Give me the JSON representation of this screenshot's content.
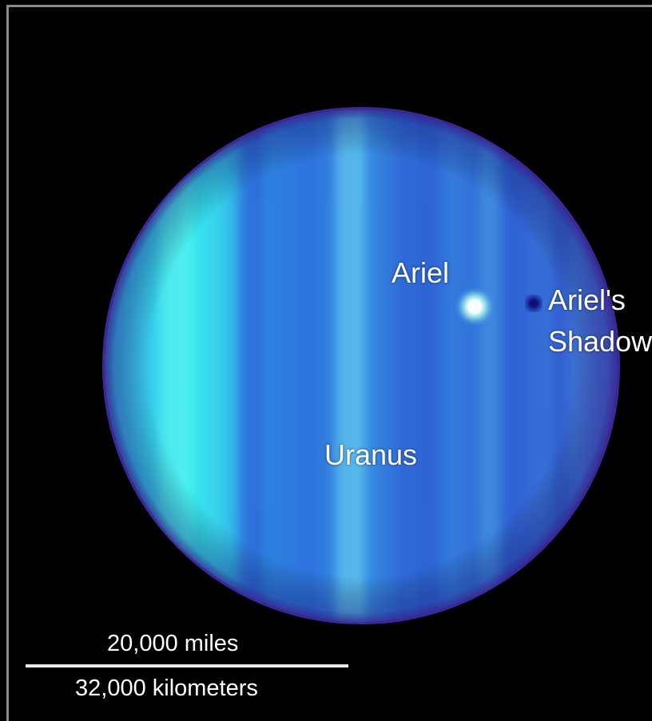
{
  "labels": {
    "ariel": "Ariel",
    "ariels_shadow_line1": "Ariel's",
    "ariels_shadow_line2": "Shadow",
    "uranus": "Uranus"
  },
  "scale": {
    "miles": "20,000 miles",
    "kilometers": "32,000 kilometers"
  },
  "colors": {
    "background": "#000000",
    "planet_cyan": "#35e6ee",
    "planet_blue": "#2f5fd8",
    "planet_rim": "#5a3fc4",
    "moon": "#e8fff6",
    "moon_shadow": "#0a0a7a"
  }
}
